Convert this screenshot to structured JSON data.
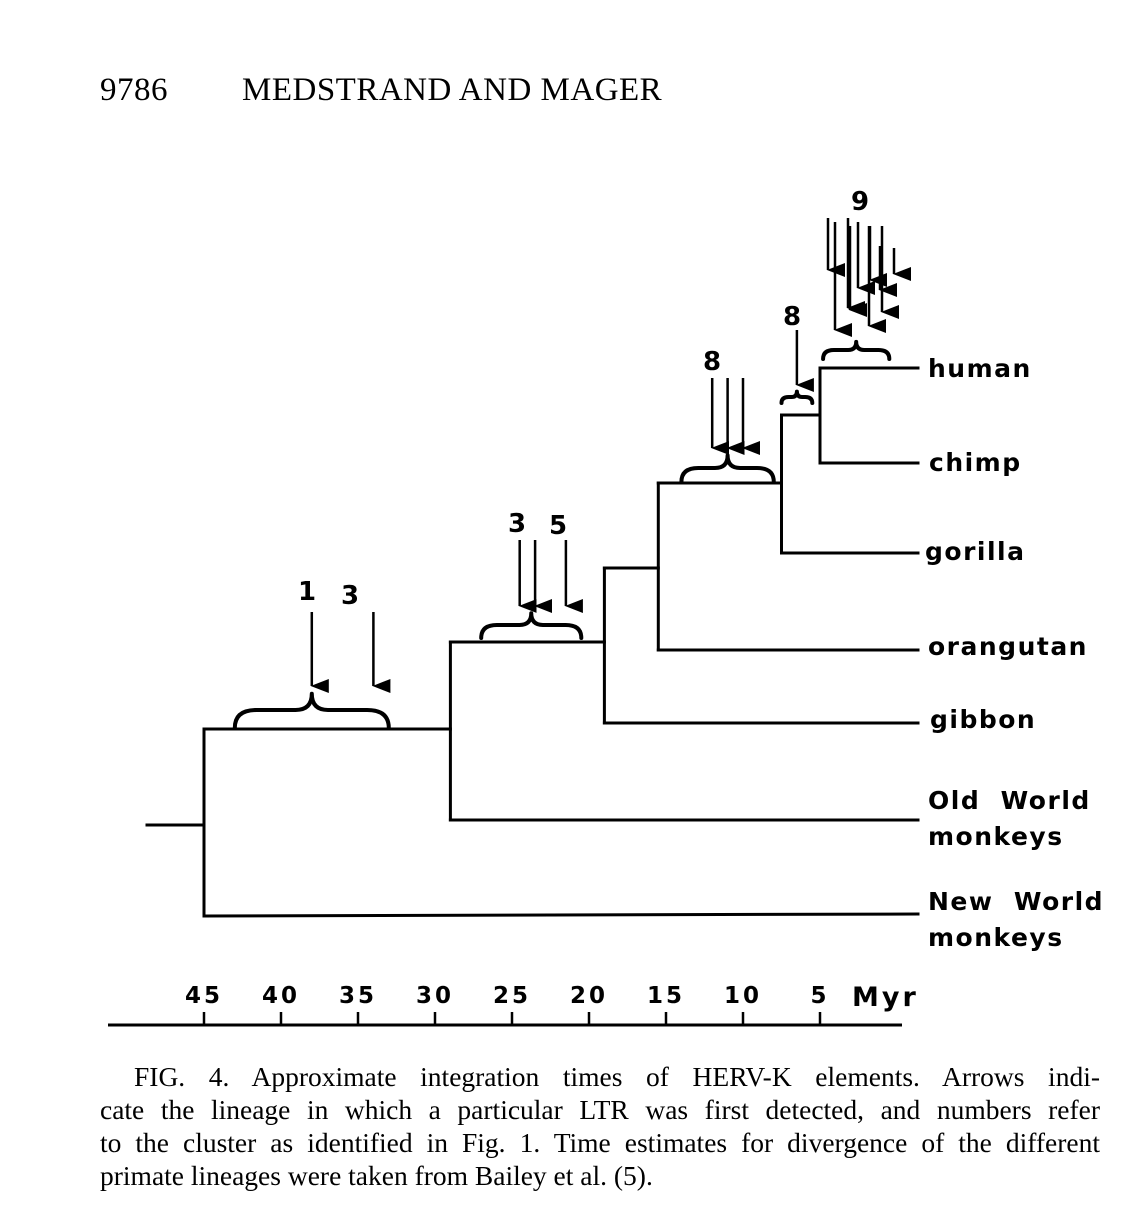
{
  "header": {
    "page_number": "9786",
    "authors": "MEDSTRAND AND MAGER"
  },
  "chart_data": {
    "type": "phylogenetic-tree",
    "axis": {
      "unit_label": "Myr",
      "ticks": [
        45,
        40,
        35,
        30,
        25,
        20,
        15,
        10,
        5
      ],
      "range": [
        48,
        0
      ]
    },
    "lineages": [
      {
        "label_lines": [
          "human"
        ]
      },
      {
        "label_lines": [
          "chimp"
        ]
      },
      {
        "label_lines": [
          "gorilla"
        ]
      },
      {
        "label_lines": [
          "orangutan"
        ]
      },
      {
        "label_lines": [
          "gibbon"
        ]
      },
      {
        "label_lines": [
          "Old",
          "World",
          "monkeys"
        ]
      },
      {
        "label_lines": [
          "New",
          "World",
          "monkeys"
        ]
      }
    ],
    "divergences_myr": {
      "new_world_vs_rest": 45,
      "old_world_vs_apes": 29,
      "gibbon_vs_great_apes": 19,
      "orangutan_vs_african_apes": 15.5,
      "gorilla_vs_human_chimp": 7.5,
      "human_vs_chimp": 5
    },
    "integration_clusters": [
      {
        "clusters": [
          "1",
          "3"
        ],
        "arrows_myr": [
          38,
          34
        ],
        "range_myr": [
          43,
          33
        ]
      },
      {
        "clusters": [
          "3",
          "5"
        ],
        "arrows_myr": [
          24.5,
          23.5,
          21.5
        ],
        "range_myr": [
          27,
          20.5
        ]
      },
      {
        "clusters": [
          "8"
        ],
        "arrows_myr": [
          12,
          11,
          10
        ],
        "range_myr": [
          14,
          8
        ]
      },
      {
        "clusters": [
          "8"
        ],
        "arrows_myr": [
          6.5
        ],
        "range_myr": [
          7.5,
          5.5
        ]
      },
      {
        "clusters": [
          "9"
        ],
        "arrows_myr": [
          4.5,
          4,
          3.2,
          3,
          2.6,
          2.2,
          2,
          1.6,
          1.4,
          0.8
        ],
        "range_myr": [
          4.8,
          0.5
        ]
      }
    ]
  },
  "caption": {
    "lines": [
      "FIG. 4. Approximate integration times of HERV-K elements. Arrows indi-",
      "cate the lineage in which a particular LTR was first detected, and numbers refer",
      "to the cluster as identified in Fig. 1. Time estimates for divergence of the different",
      "primate lineages were taken from Bailey et al. (5)."
    ]
  }
}
